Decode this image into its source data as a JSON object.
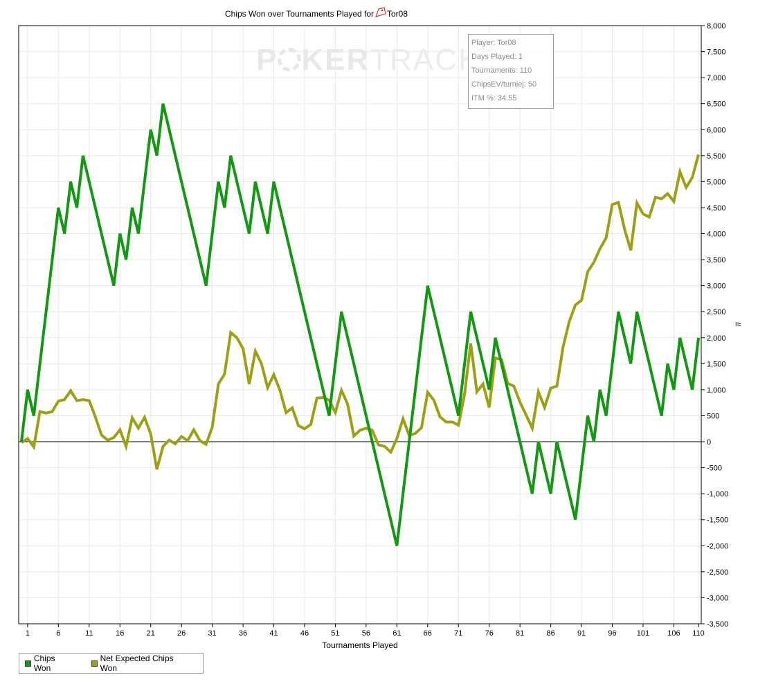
{
  "header": {
    "title": "Chips Won over Tournaments Played for",
    "player_name": "Tor08"
  },
  "watermark": {
    "part1": "P",
    "part2": "KER",
    "part3": "TRACKER"
  },
  "info_box": {
    "lines": [
      "Player: Tor08",
      "Days Played: 1",
      "Tournaments: 110",
      "ChipsEV/turniej: 50",
      "ITM %: 34.55"
    ]
  },
  "legend": [
    {
      "label": "Chips Won",
      "color": "#119911"
    },
    {
      "label": "Net Expected Chips Won",
      "color": "#9ea013"
    }
  ],
  "chart_data": {
    "type": "line",
    "title": "Chips Won over Tournaments Played for Tor08",
    "xlabel": "Tournaments Played",
    "ylabel": "#",
    "xlim": [
      0,
      110
    ],
    "ylim": [
      -3500,
      8000
    ],
    "xticks": [
      1,
      6,
      11,
      16,
      21,
      26,
      31,
      36,
      41,
      46,
      51,
      56,
      61,
      66,
      71,
      76,
      81,
      86,
      91,
      96,
      101,
      106,
      110
    ],
    "yticks": [
      8000,
      7500,
      7000,
      6500,
      6000,
      5500,
      5000,
      4500,
      4000,
      3500,
      3000,
      2500,
      2000,
      1500,
      1000,
      500,
      0,
      -500,
      -1000,
      -1500,
      -2000,
      -2500,
      -3000,
      -3500
    ],
    "ytick_labels": [
      "8,000",
      "7,500",
      "7,000",
      "6,500",
      "6,000",
      "5,500",
      "5,000",
      "4,500",
      "4,000",
      "3,500",
      "3,000",
      "2,500",
      "2,000",
      "1,500",
      "1,000",
      "500",
      "0",
      "-500",
      "-1,000",
      "-1,500",
      "-2,000",
      "-2,500",
      "-3,000",
      "-3,500"
    ],
    "grid": true,
    "legend_position": "bottom-left",
    "series": [
      {
        "name": "Chips Won",
        "color": "#119911",
        "points": [
          [
            0,
            0
          ],
          [
            1,
            1000
          ],
          [
            2,
            500
          ],
          [
            6,
            4500
          ],
          [
            7,
            4000
          ],
          [
            8,
            5000
          ],
          [
            9,
            4500
          ],
          [
            10,
            5500
          ],
          [
            15,
            3000
          ],
          [
            16,
            4000
          ],
          [
            17,
            3500
          ],
          [
            18,
            4500
          ],
          [
            19,
            4000
          ],
          [
            21,
            6000
          ],
          [
            22,
            5500
          ],
          [
            23,
            6500
          ],
          [
            30,
            3000
          ],
          [
            32,
            5000
          ],
          [
            33,
            4500
          ],
          [
            34,
            5500
          ],
          [
            37,
            4000
          ],
          [
            38,
            5000
          ],
          [
            40,
            4000
          ],
          [
            41,
            5000
          ],
          [
            50,
            500
          ],
          [
            52,
            2500
          ],
          [
            61,
            -2000
          ],
          [
            66,
            3000
          ],
          [
            71,
            500
          ],
          [
            73,
            2500
          ],
          [
            76,
            1000
          ],
          [
            77,
            2000
          ],
          [
            83,
            -1000
          ],
          [
            84,
            0
          ],
          [
            86,
            -1000
          ],
          [
            87,
            0
          ],
          [
            90,
            -1500
          ],
          [
            92,
            500
          ],
          [
            93,
            0
          ],
          [
            94,
            1000
          ],
          [
            95,
            500
          ],
          [
            97,
            2500
          ],
          [
            99,
            1500
          ],
          [
            100,
            2500
          ],
          [
            104,
            500
          ],
          [
            105,
            1500
          ],
          [
            106,
            1000
          ],
          [
            107,
            2000
          ],
          [
            109,
            1000
          ],
          [
            110,
            2000
          ]
        ]
      },
      {
        "name": "Net Expected Chips Won",
        "color": "#9ea013",
        "points": [
          [
            0,
            -20
          ],
          [
            1,
            60
          ],
          [
            2,
            -100
          ],
          [
            3,
            580
          ],
          [
            4,
            550
          ],
          [
            5,
            580
          ],
          [
            6,
            780
          ],
          [
            7,
            810
          ],
          [
            8,
            980
          ],
          [
            9,
            790
          ],
          [
            10,
            810
          ],
          [
            11,
            790
          ],
          [
            12,
            480
          ],
          [
            13,
            130
          ],
          [
            14,
            30
          ],
          [
            15,
            80
          ],
          [
            16,
            230
          ],
          [
            17,
            -90
          ],
          [
            18,
            460
          ],
          [
            19,
            260
          ],
          [
            20,
            470
          ],
          [
            21,
            150
          ],
          [
            22,
            -530
          ],
          [
            23,
            -90
          ],
          [
            24,
            30
          ],
          [
            25,
            -40
          ],
          [
            26,
            100
          ],
          [
            27,
            20
          ],
          [
            28,
            230
          ],
          [
            29,
            20
          ],
          [
            30,
            -50
          ],
          [
            31,
            280
          ],
          [
            32,
            1110
          ],
          [
            33,
            1300
          ],
          [
            34,
            2100
          ],
          [
            35,
            2000
          ],
          [
            36,
            1790
          ],
          [
            37,
            1110
          ],
          [
            38,
            1740
          ],
          [
            39,
            1500
          ],
          [
            40,
            1040
          ],
          [
            41,
            1290
          ],
          [
            42,
            990
          ],
          [
            43,
            560
          ],
          [
            44,
            650
          ],
          [
            45,
            310
          ],
          [
            46,
            250
          ],
          [
            47,
            330
          ],
          [
            48,
            840
          ],
          [
            49,
            850
          ],
          [
            50,
            800
          ],
          [
            51,
            560
          ],
          [
            52,
            990
          ],
          [
            53,
            720
          ],
          [
            54,
            110
          ],
          [
            55,
            220
          ],
          [
            56,
            260
          ],
          [
            57,
            220
          ],
          [
            58,
            -60
          ],
          [
            59,
            -90
          ],
          [
            60,
            -200
          ],
          [
            61,
            60
          ],
          [
            62,
            440
          ],
          [
            63,
            120
          ],
          [
            64,
            160
          ],
          [
            65,
            270
          ],
          [
            66,
            950
          ],
          [
            67,
            800
          ],
          [
            68,
            480
          ],
          [
            69,
            380
          ],
          [
            70,
            380
          ],
          [
            71,
            320
          ],
          [
            72,
            910
          ],
          [
            73,
            1890
          ],
          [
            74,
            960
          ],
          [
            75,
            1110
          ],
          [
            76,
            660
          ],
          [
            77,
            1610
          ],
          [
            78,
            1580
          ],
          [
            79,
            1120
          ],
          [
            80,
            1070
          ],
          [
            81,
            760
          ],
          [
            82,
            510
          ],
          [
            83,
            260
          ],
          [
            84,
            960
          ],
          [
            85,
            660
          ],
          [
            86,
            1030
          ],
          [
            87,
            1070
          ],
          [
            88,
            1820
          ],
          [
            89,
            2310
          ],
          [
            90,
            2630
          ],
          [
            91,
            2720
          ],
          [
            92,
            3270
          ],
          [
            93,
            3450
          ],
          [
            94,
            3710
          ],
          [
            95,
            3920
          ],
          [
            96,
            4560
          ],
          [
            97,
            4600
          ],
          [
            98,
            4080
          ],
          [
            99,
            3680
          ],
          [
            100,
            4590
          ],
          [
            101,
            4380
          ],
          [
            102,
            4320
          ],
          [
            103,
            4700
          ],
          [
            104,
            4670
          ],
          [
            105,
            4770
          ],
          [
            106,
            4620
          ],
          [
            107,
            5190
          ],
          [
            108,
            4890
          ],
          [
            109,
            5080
          ],
          [
            110,
            5520
          ]
        ]
      }
    ]
  }
}
